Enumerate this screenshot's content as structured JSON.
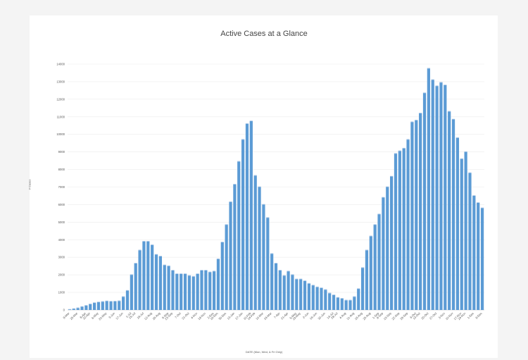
{
  "chart_data": {
    "type": "bar",
    "title": "Active Cases at a Glance",
    "xlabel": "DATE (Mon, Wed, & Fri Only)",
    "ylabel": "# Cases",
    "ylim": [
      0,
      14000
    ],
    "yticks": [
      0,
      1000,
      2000,
      3000,
      4000,
      5000,
      6000,
      7000,
      8000,
      9000,
      10000,
      11000,
      12000,
      13000,
      14000
    ],
    "grid": true,
    "bar_color": "#5b9bd5",
    "x_tick_labels": [
      "8-Mar",
      "25-Mar",
      "8-Apr",
      "22-Apr",
      "6-May",
      "20-May",
      "3-Jun",
      "17-Jun",
      "1-Jul",
      "15-Jul",
      "29-Jul",
      "12-Aug",
      "26-Aug",
      "9-Sep",
      "23-Sep",
      "7-Oct",
      "21-Oct",
      "4-Nov",
      "18-Nov",
      "2-Dec",
      "16-Dec",
      "30-Dec",
      "13-Jan",
      "27-Jan",
      "10-Feb",
      "24-Feb",
      "10-Mar",
      "24-Mar",
      "7-Apr",
      "21-Apr",
      "5-May",
      "19-May",
      "2-Jun",
      "16-Jun",
      "30-Jun",
      "14-Jul",
      "28-Jul",
      "4-Aug",
      "11-Aug",
      "18-Aug",
      "25-Aug",
      "1-Sep",
      "8-Sep",
      "15-Sep",
      "22-Sep",
      "29-Sep",
      "6-Oct",
      "13-Oct",
      "20-Oct",
      "27-Oct",
      "3-Nov",
      "10-Nov",
      "17-Nov",
      "24-Nov",
      "1-Dec",
      "8-Dec"
    ],
    "values": [
      20,
      60,
      110,
      180,
      250,
      330,
      400,
      440,
      470,
      500,
      480,
      490,
      510,
      750,
      1100,
      2000,
      2650,
      3400,
      3900,
      3900,
      3700,
      3150,
      3050,
      2550,
      2500,
      2250,
      2050,
      2050,
      2050,
      1950,
      1900,
      2050,
      2250,
      2250,
      2150,
      2200,
      2900,
      3850,
      4850,
      6150,
      7150,
      8450,
      9700,
      10600,
      10750,
      7650,
      7000,
      6000,
      5250,
      3200,
      2650,
      2250,
      1950,
      2200,
      2000,
      1750,
      1750,
      1650,
      1500,
      1400,
      1300,
      1250,
      1150,
      950,
      850,
      700,
      650,
      550,
      550,
      750,
      1200,
      2400,
      3400,
      4200,
      4850,
      5450,
      6400,
      7000,
      7600,
      8900,
      9050,
      9200,
      9700,
      10700,
      10800,
      11200,
      12350,
      13750,
      13100,
      12750,
      12950,
      12800,
      11300,
      10850,
      9800,
      8600,
      9000,
      7800,
      6500,
      6100,
      5800
    ]
  }
}
